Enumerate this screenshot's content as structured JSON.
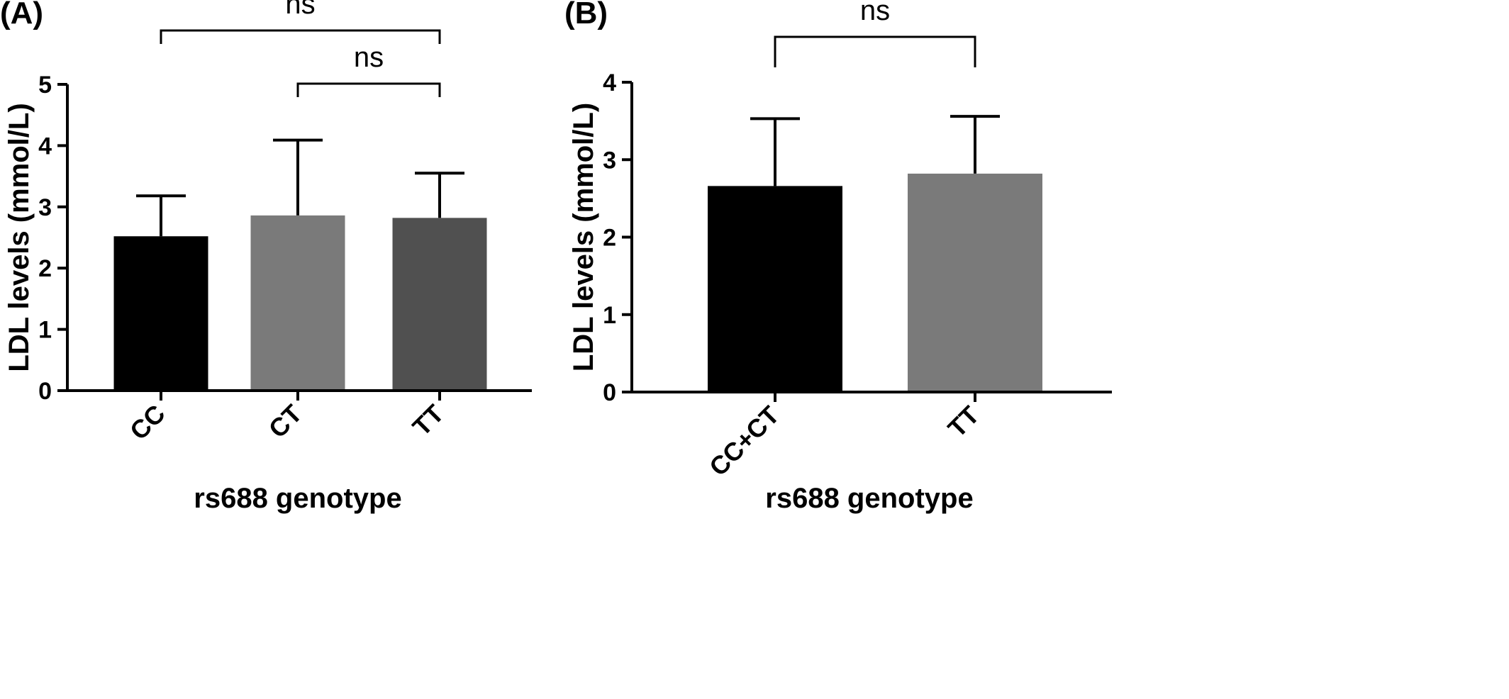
{
  "chart_data": [
    {
      "panel_label": "(A)",
      "type": "bar",
      "categories": [
        "CC",
        "CT",
        "TT"
      ],
      "values": [
        2.52,
        2.86,
        2.82
      ],
      "error_upper": [
        3.18,
        4.09,
        3.55
      ],
      "bar_colors": [
        "#000000",
        "#7a7a7a",
        "#505050"
      ],
      "xlabel": "rs688 genotype",
      "ylabel": "LDL levels (mmol/L)",
      "ylim": [
        0,
        5
      ],
      "yticks": [
        "0",
        "1",
        "2",
        "3",
        "4",
        "5"
      ],
      "comparisons": [
        {
          "from": 0,
          "to": 2,
          "label": "ns"
        },
        {
          "from": 1,
          "to": 2,
          "label": "ns"
        }
      ],
      "grid": false
    },
    {
      "panel_label": "(B)",
      "type": "bar",
      "categories": [
        "CC+CT",
        "TT"
      ],
      "values": [
        2.66,
        2.82
      ],
      "error_upper": [
        3.53,
        3.56
      ],
      "bar_colors": [
        "#000000",
        "#7a7a7a"
      ],
      "xlabel": "rs688 genotype",
      "ylabel": "LDL levels (mmol/L)",
      "ylim": [
        0,
        4
      ],
      "yticks": [
        "0",
        "1",
        "2",
        "3",
        "4"
      ],
      "comparisons": [
        {
          "from": 0,
          "to": 1,
          "label": "ns"
        }
      ],
      "grid": false
    }
  ]
}
